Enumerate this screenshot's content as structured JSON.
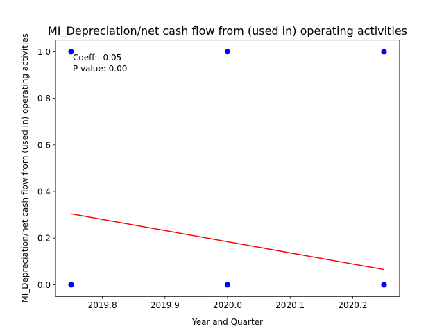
{
  "chart_data": {
    "type": "scatter",
    "title": "MI_Depreciation/net cash flow from (used in) operating activities",
    "xlabel": "Year and Quarter",
    "ylabel": "MI_Depreciation/net cash flow from (used in) operating activities",
    "xlim": [
      2019.725,
      2020.275
    ],
    "ylim": [
      -0.05,
      1.05
    ],
    "x_ticks": [
      2019.8,
      2019.9,
      2020.0,
      2020.1,
      2020.2
    ],
    "x_tick_labels": [
      "2019.8",
      "2019.9",
      "2020.0",
      "2020.1",
      "2020.2"
    ],
    "y_ticks": [
      0.0,
      0.2,
      0.4,
      0.6,
      0.8,
      1.0
    ],
    "y_tick_labels": [
      "0.0",
      "0.2",
      "0.4",
      "0.6",
      "0.8",
      "1.0"
    ],
    "grid": false,
    "series": [
      {
        "type": "scatter",
        "color": "#0000ff",
        "x": [
          2019.75,
          2019.75,
          2019.75,
          2019.75,
          2020.0,
          2020.0,
          2020.0,
          2020.25,
          2020.25,
          2020.25,
          2020.25,
          2020.25
        ],
        "y": [
          1,
          1,
          0,
          0,
          1,
          0,
          0,
          1,
          1,
          0,
          0,
          0
        ]
      },
      {
        "type": "line",
        "color": "#ff0000",
        "x": [
          2019.75,
          2020.25
        ],
        "y": [
          0.304,
          0.065
        ]
      }
    ],
    "annotation": {
      "coeff_text": "Coeff: -0.05",
      "pvalue_text": "P-value: 0.00"
    }
  }
}
